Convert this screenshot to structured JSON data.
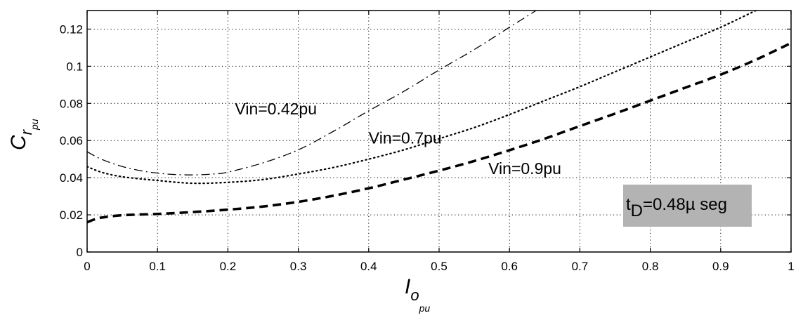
{
  "chart_data": {
    "type": "line",
    "xlabel": {
      "main": "I",
      "sub": "o",
      "subsub": "pu"
    },
    "ylabel": {
      "main": "C",
      "sub": "r",
      "subsub": "pu"
    },
    "xlim": [
      0,
      1
    ],
    "ylim": [
      0,
      0.13
    ],
    "xticks": [
      0,
      0.1,
      0.2,
      0.3,
      0.4,
      0.5,
      0.6,
      0.7,
      0.8,
      0.9,
      1
    ],
    "xtick_labels": [
      "0",
      "0.1",
      "0.2",
      "0.3",
      "0.4",
      "0.5",
      "0.6",
      "0.7",
      "0.8",
      "0.9",
      "1"
    ],
    "yticks": [
      0,
      0.02,
      0.04,
      0.06,
      0.08,
      0.1,
      0.12
    ],
    "ytick_labels": [
      "0",
      "0.02",
      "0.04",
      "0.06",
      "0.08",
      "0.1",
      "0.12"
    ],
    "grid": true,
    "series": [
      {
        "name": "Vin=0.42pu",
        "style": "dashdot",
        "x": [
          0,
          0.02,
          0.05,
          0.08,
          0.1,
          0.12,
          0.15,
          0.18,
          0.2,
          0.25,
          0.3,
          0.35,
          0.4,
          0.45,
          0.5,
          0.55,
          0.6,
          0.65,
          0.7
        ],
        "y": [
          0.054,
          0.05,
          0.046,
          0.0435,
          0.0425,
          0.0418,
          0.0415,
          0.042,
          0.043,
          0.048,
          0.055,
          0.065,
          0.076,
          0.0865,
          0.098,
          0.109,
          0.121,
          0.133,
          0.146
        ]
      },
      {
        "name": "Vin=0.7pu",
        "style": "dotted",
        "x": [
          0,
          0.02,
          0.05,
          0.1,
          0.15,
          0.2,
          0.25,
          0.3,
          0.35,
          0.4,
          0.45,
          0.5,
          0.55,
          0.6,
          0.65,
          0.7,
          0.75,
          0.8,
          0.85,
          0.9,
          0.95
        ],
        "y": [
          0.046,
          0.043,
          0.0405,
          0.0385,
          0.037,
          0.0375,
          0.039,
          0.042,
          0.0455,
          0.05,
          0.055,
          0.061,
          0.067,
          0.074,
          0.0815,
          0.089,
          0.097,
          0.105,
          0.113,
          0.121,
          0.13
        ]
      },
      {
        "name": "Vin=0.9pu",
        "style": "dashed",
        "x": [
          0,
          0.01,
          0.02,
          0.05,
          0.1,
          0.15,
          0.2,
          0.25,
          0.3,
          0.35,
          0.4,
          0.45,
          0.5,
          0.55,
          0.6,
          0.65,
          0.7,
          0.75,
          0.8,
          0.85,
          0.9,
          0.95,
          1
        ],
        "y": [
          0.016,
          0.0175,
          0.0185,
          0.0198,
          0.0205,
          0.0215,
          0.0228,
          0.0245,
          0.027,
          0.0303,
          0.0343,
          0.039,
          0.0438,
          0.049,
          0.0548,
          0.061,
          0.0678,
          0.0745,
          0.0815,
          0.0885,
          0.0955,
          0.1035,
          0.1125
        ]
      }
    ],
    "annotations": [
      {
        "text": "Vin=0.42pu",
        "x": 0.21,
        "y": 0.077
      },
      {
        "text": "Vin=0.7pu",
        "x": 0.4,
        "y": 0.0615
      },
      {
        "text": "Vin=0.9pu",
        "x": 0.57,
        "y": 0.045
      }
    ],
    "label_box": {
      "main": "t",
      "sub": "D",
      "rest": "=0.48µ seg",
      "fill": "#b3b3b3"
    }
  }
}
